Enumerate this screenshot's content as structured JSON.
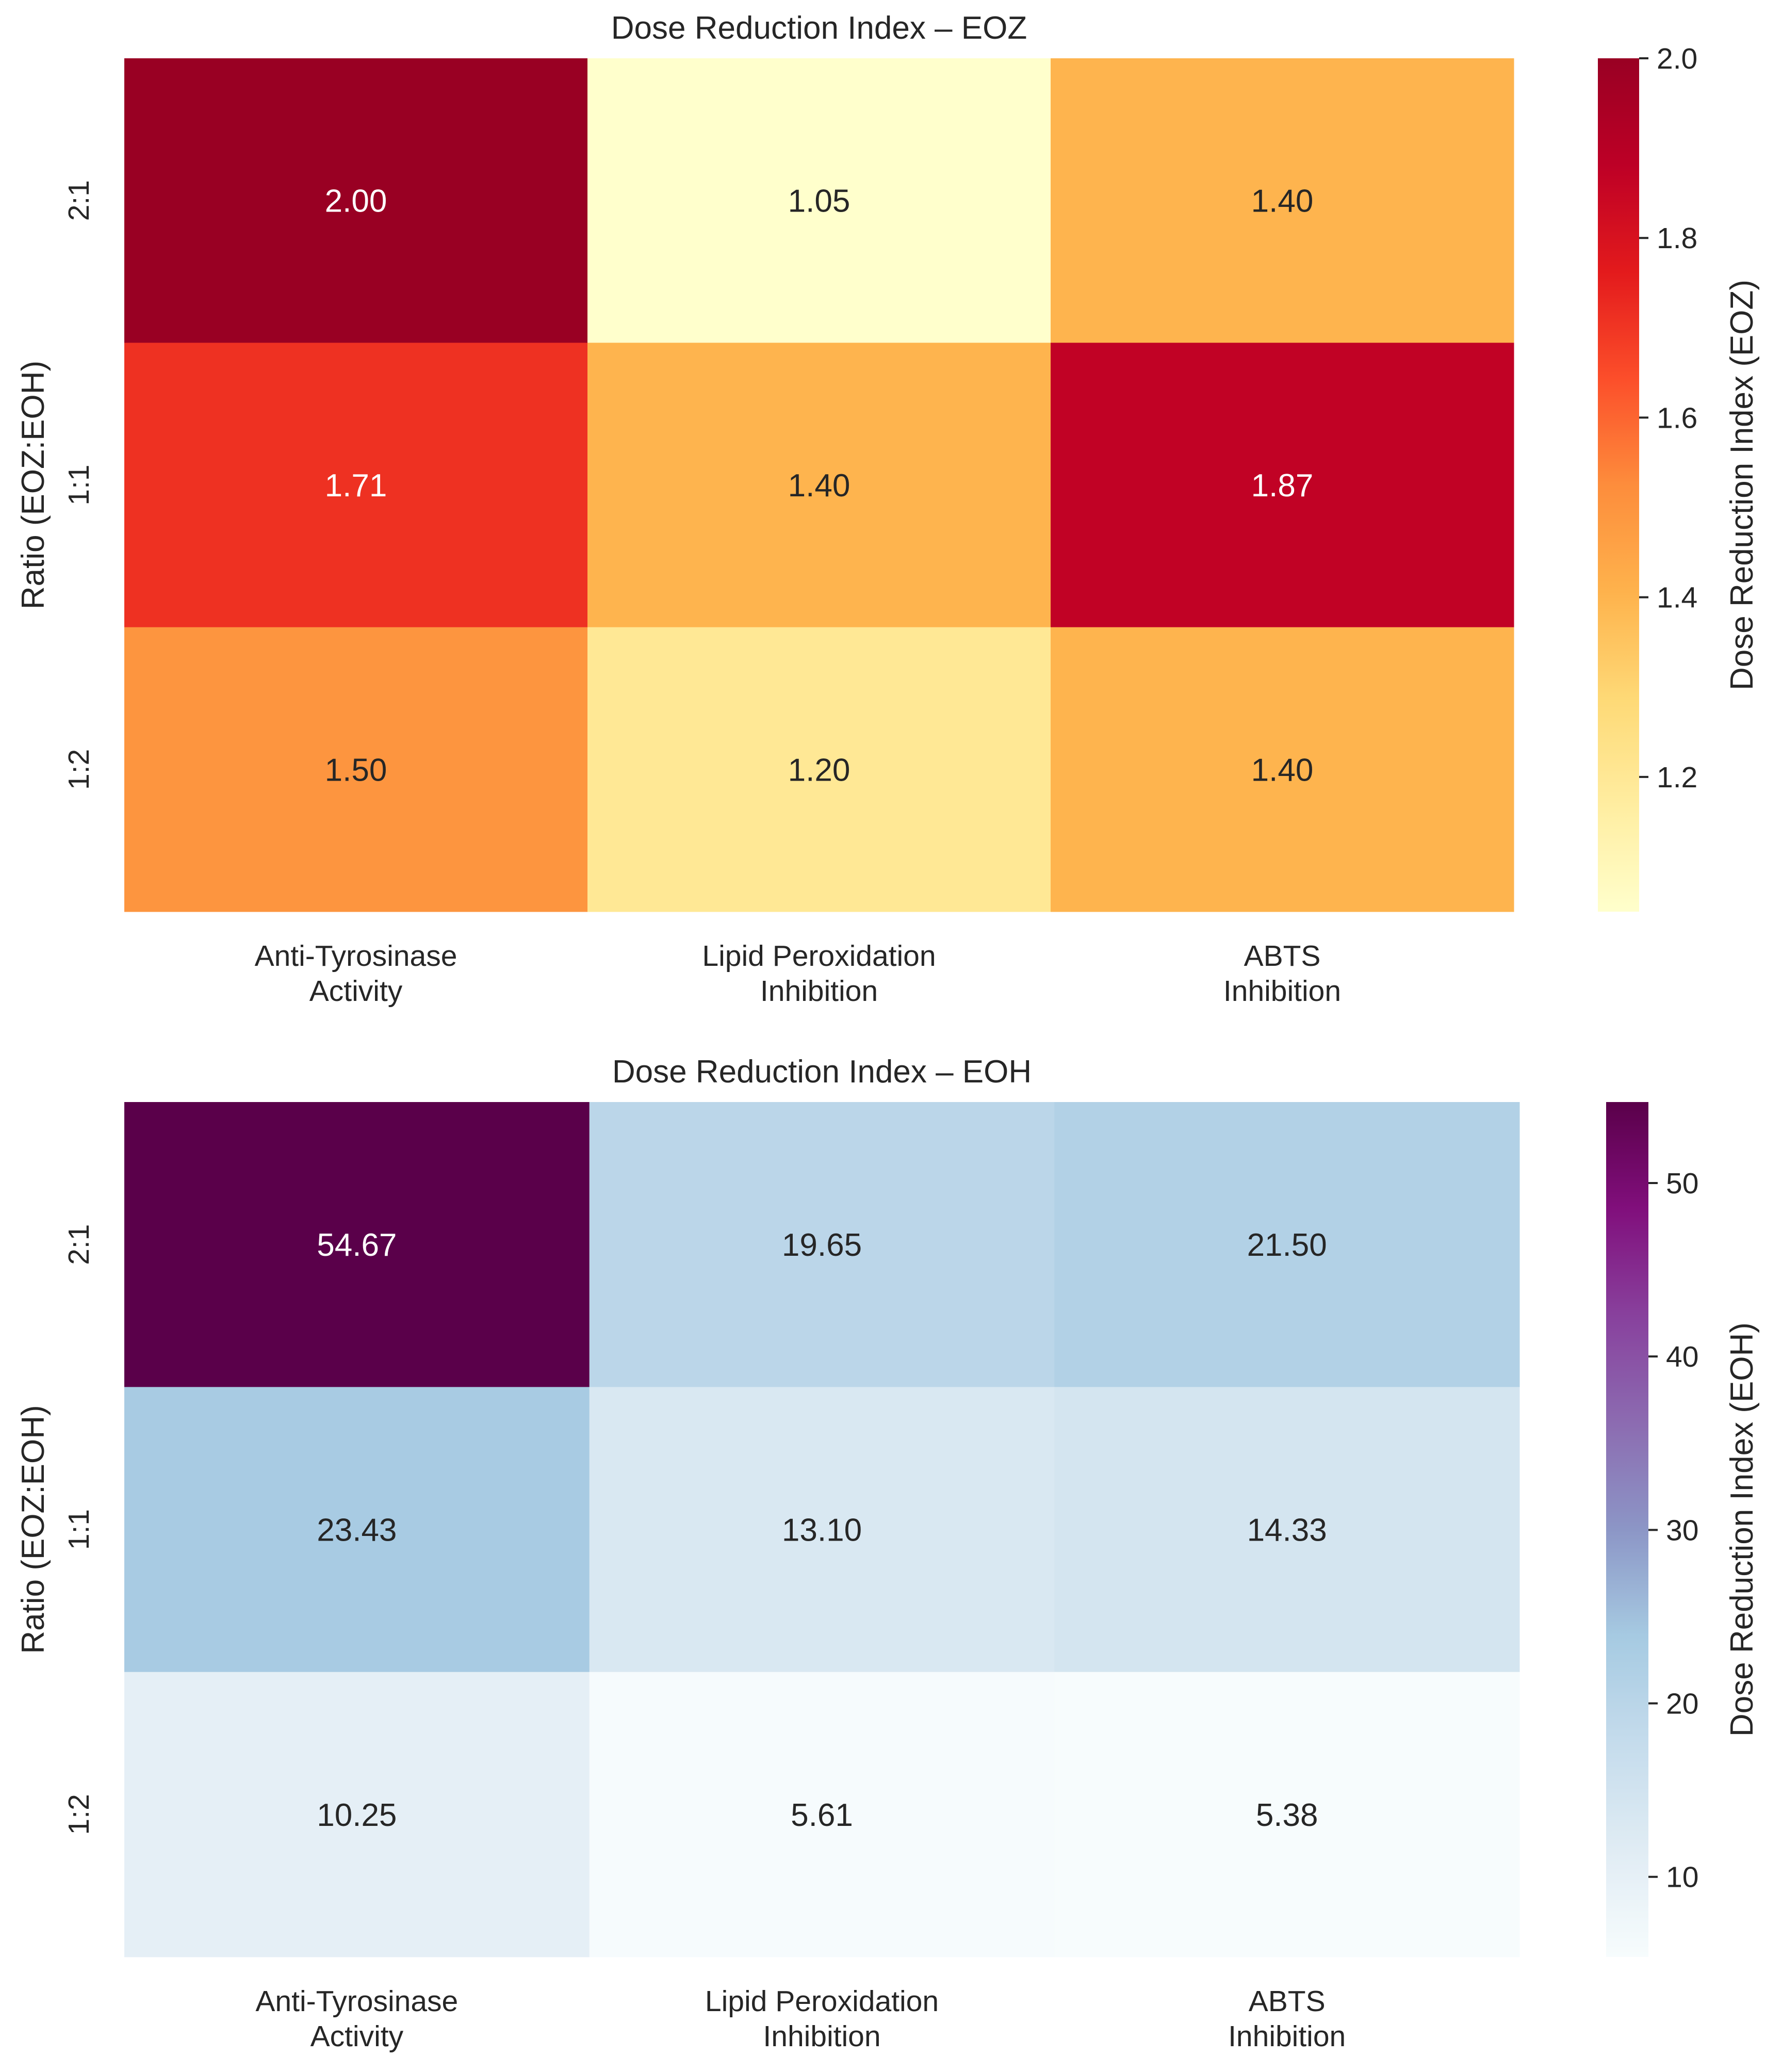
{
  "chart_data": [
    {
      "type": "heatmap",
      "title": "Dose Reduction Index – EOZ",
      "xlabel": "",
      "ylabel": "Ratio (EOZ:EOH)",
      "x_categories": [
        [
          "Anti-Tyrosinase",
          "Activity"
        ],
        [
          "Lipid Peroxidation",
          "Inhibition"
        ],
        [
          "ABTS",
          "Inhibition"
        ]
      ],
      "y_categories": [
        "2:1",
        "1:1",
        "1:2"
      ],
      "values": [
        [
          2.0,
          1.05,
          1.4
        ],
        [
          1.71,
          1.4,
          1.87
        ],
        [
          1.5,
          1.2,
          1.4
        ]
      ],
      "value_format": "0.00",
      "colormap": "YlOrRd",
      "colorbar": {
        "label": "Dose Reduction Index (EOZ)",
        "range": [
          1.05,
          2.0
        ],
        "ticks": [
          1.2,
          1.4,
          1.6,
          1.8,
          2.0
        ],
        "tick_labels": [
          "1.2",
          "1.4",
          "1.6",
          "1.8",
          "2.0"
        ]
      }
    },
    {
      "type": "heatmap",
      "title": "Dose Reduction Index – EOH",
      "xlabel": "",
      "ylabel": "Ratio (EOZ:EOH)",
      "x_categories": [
        [
          "Anti-Tyrosinase",
          "Activity"
        ],
        [
          "Lipid Peroxidation",
          "Inhibition"
        ],
        [
          "ABTS",
          "Inhibition"
        ]
      ],
      "y_categories": [
        "2:1",
        "1:1",
        "1:2"
      ],
      "values": [
        [
          54.67,
          19.65,
          21.5
        ],
        [
          23.43,
          13.1,
          14.33
        ],
        [
          10.25,
          5.61,
          5.38
        ]
      ],
      "value_format": "0.00",
      "colormap": "BuPu",
      "colorbar": {
        "label": "Dose Reduction Index (EOH)",
        "range": [
          5.38,
          54.67
        ],
        "ticks": [
          10,
          20,
          30,
          40,
          50
        ],
        "tick_labels": [
          "10",
          "20",
          "30",
          "40",
          "50"
        ]
      }
    }
  ]
}
